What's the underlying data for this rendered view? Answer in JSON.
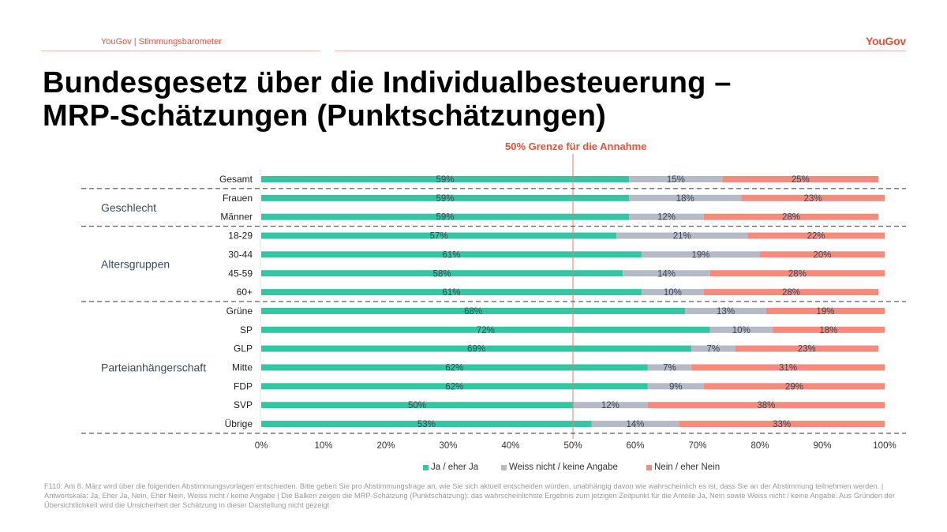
{
  "header": {
    "source_label": "YouGov | Stimmungsbarometer",
    "logo": "YouGov",
    "title_line1": "Bundesgesetz über die Individualbesteuerung –",
    "title_line2": "MRP-Schätzungen (Punktschätzungen)"
  },
  "colors": {
    "yes": "#34c6a3",
    "dontknow": "#b6bac6",
    "no": "#f58b7c",
    "accent": "#e0523f",
    "threshold_line": "#d9826e"
  },
  "chart_data": {
    "type": "bar",
    "orientation": "horizontal",
    "stacked": true,
    "title": "",
    "annotation": "50% Grenze für die Annahme",
    "threshold": 50,
    "xlim": [
      0,
      100
    ],
    "x_ticks": [
      "0%",
      "10%",
      "20%",
      "30%",
      "40%",
      "50%",
      "60%",
      "70%",
      "80%",
      "90%",
      "100%"
    ],
    "legend_position": "bottom",
    "groups": [
      {
        "name": "",
        "categories": [
          "Gesamt"
        ]
      },
      {
        "name": "Geschlecht",
        "categories": [
          "Frauen",
          "Männer"
        ]
      },
      {
        "name": "Altersgruppen",
        "categories": [
          "18-29",
          "30-44",
          "45-59",
          "60+"
        ]
      },
      {
        "name": "Parteianhängerschaft",
        "categories": [
          "Grüne",
          "SP",
          "GLP",
          "Mitte",
          "FDP",
          "SVP",
          "Übrige"
        ]
      }
    ],
    "categories": [
      "Gesamt",
      "Frauen",
      "Männer",
      "18-29",
      "30-44",
      "45-59",
      "60+",
      "Grüne",
      "SP",
      "GLP",
      "Mitte",
      "FDP",
      "SVP",
      "Übrige"
    ],
    "series": [
      {
        "name": "Ja / eher Ja",
        "key": "yes",
        "values": [
          59,
          59,
          59,
          57,
          61,
          58,
          61,
          68,
          72,
          69,
          62,
          62,
          50,
          53
        ]
      },
      {
        "name": "Weiss nicht / keine Angabe",
        "key": "dontknow",
        "values": [
          15,
          18,
          12,
          21,
          19,
          14,
          10,
          13,
          10,
          7,
          7,
          9,
          12,
          14
        ]
      },
      {
        "name": "Nein / eher Nein",
        "key": "no",
        "values": [
          25,
          23,
          28,
          22,
          20,
          28,
          28,
          19,
          18,
          23,
          31,
          29,
          38,
          33
        ]
      }
    ]
  },
  "footnote": "F110: Am 8. März wird über die folgenden Abstimmungsvorlagen entschieden. Bitte geben Sie pro Abstimmungsfrage an, wie Sie sich aktuell entscheiden würden, unabhängig davon wie wahrscheinlich es ist, dass Sie an der Abstimmung teilnehmen werden. | Antwortskala: Ja, Eher Ja, Nein, Eher Nein, Weiss nicht / keine Angabe | Die Balken zeigen die MRP-Schätzung (Punktschätzung): das wahrscheinlichste Ergebnis zum jetzigen Zeitpunkt für die Anteile Ja, Nein sowie Weiss nicht / keine Angabe. Aus Gründen der Übersichtlichkeit wird die Unsicherheit der Schätzung in dieser Darstellung nicht gezeigt"
}
